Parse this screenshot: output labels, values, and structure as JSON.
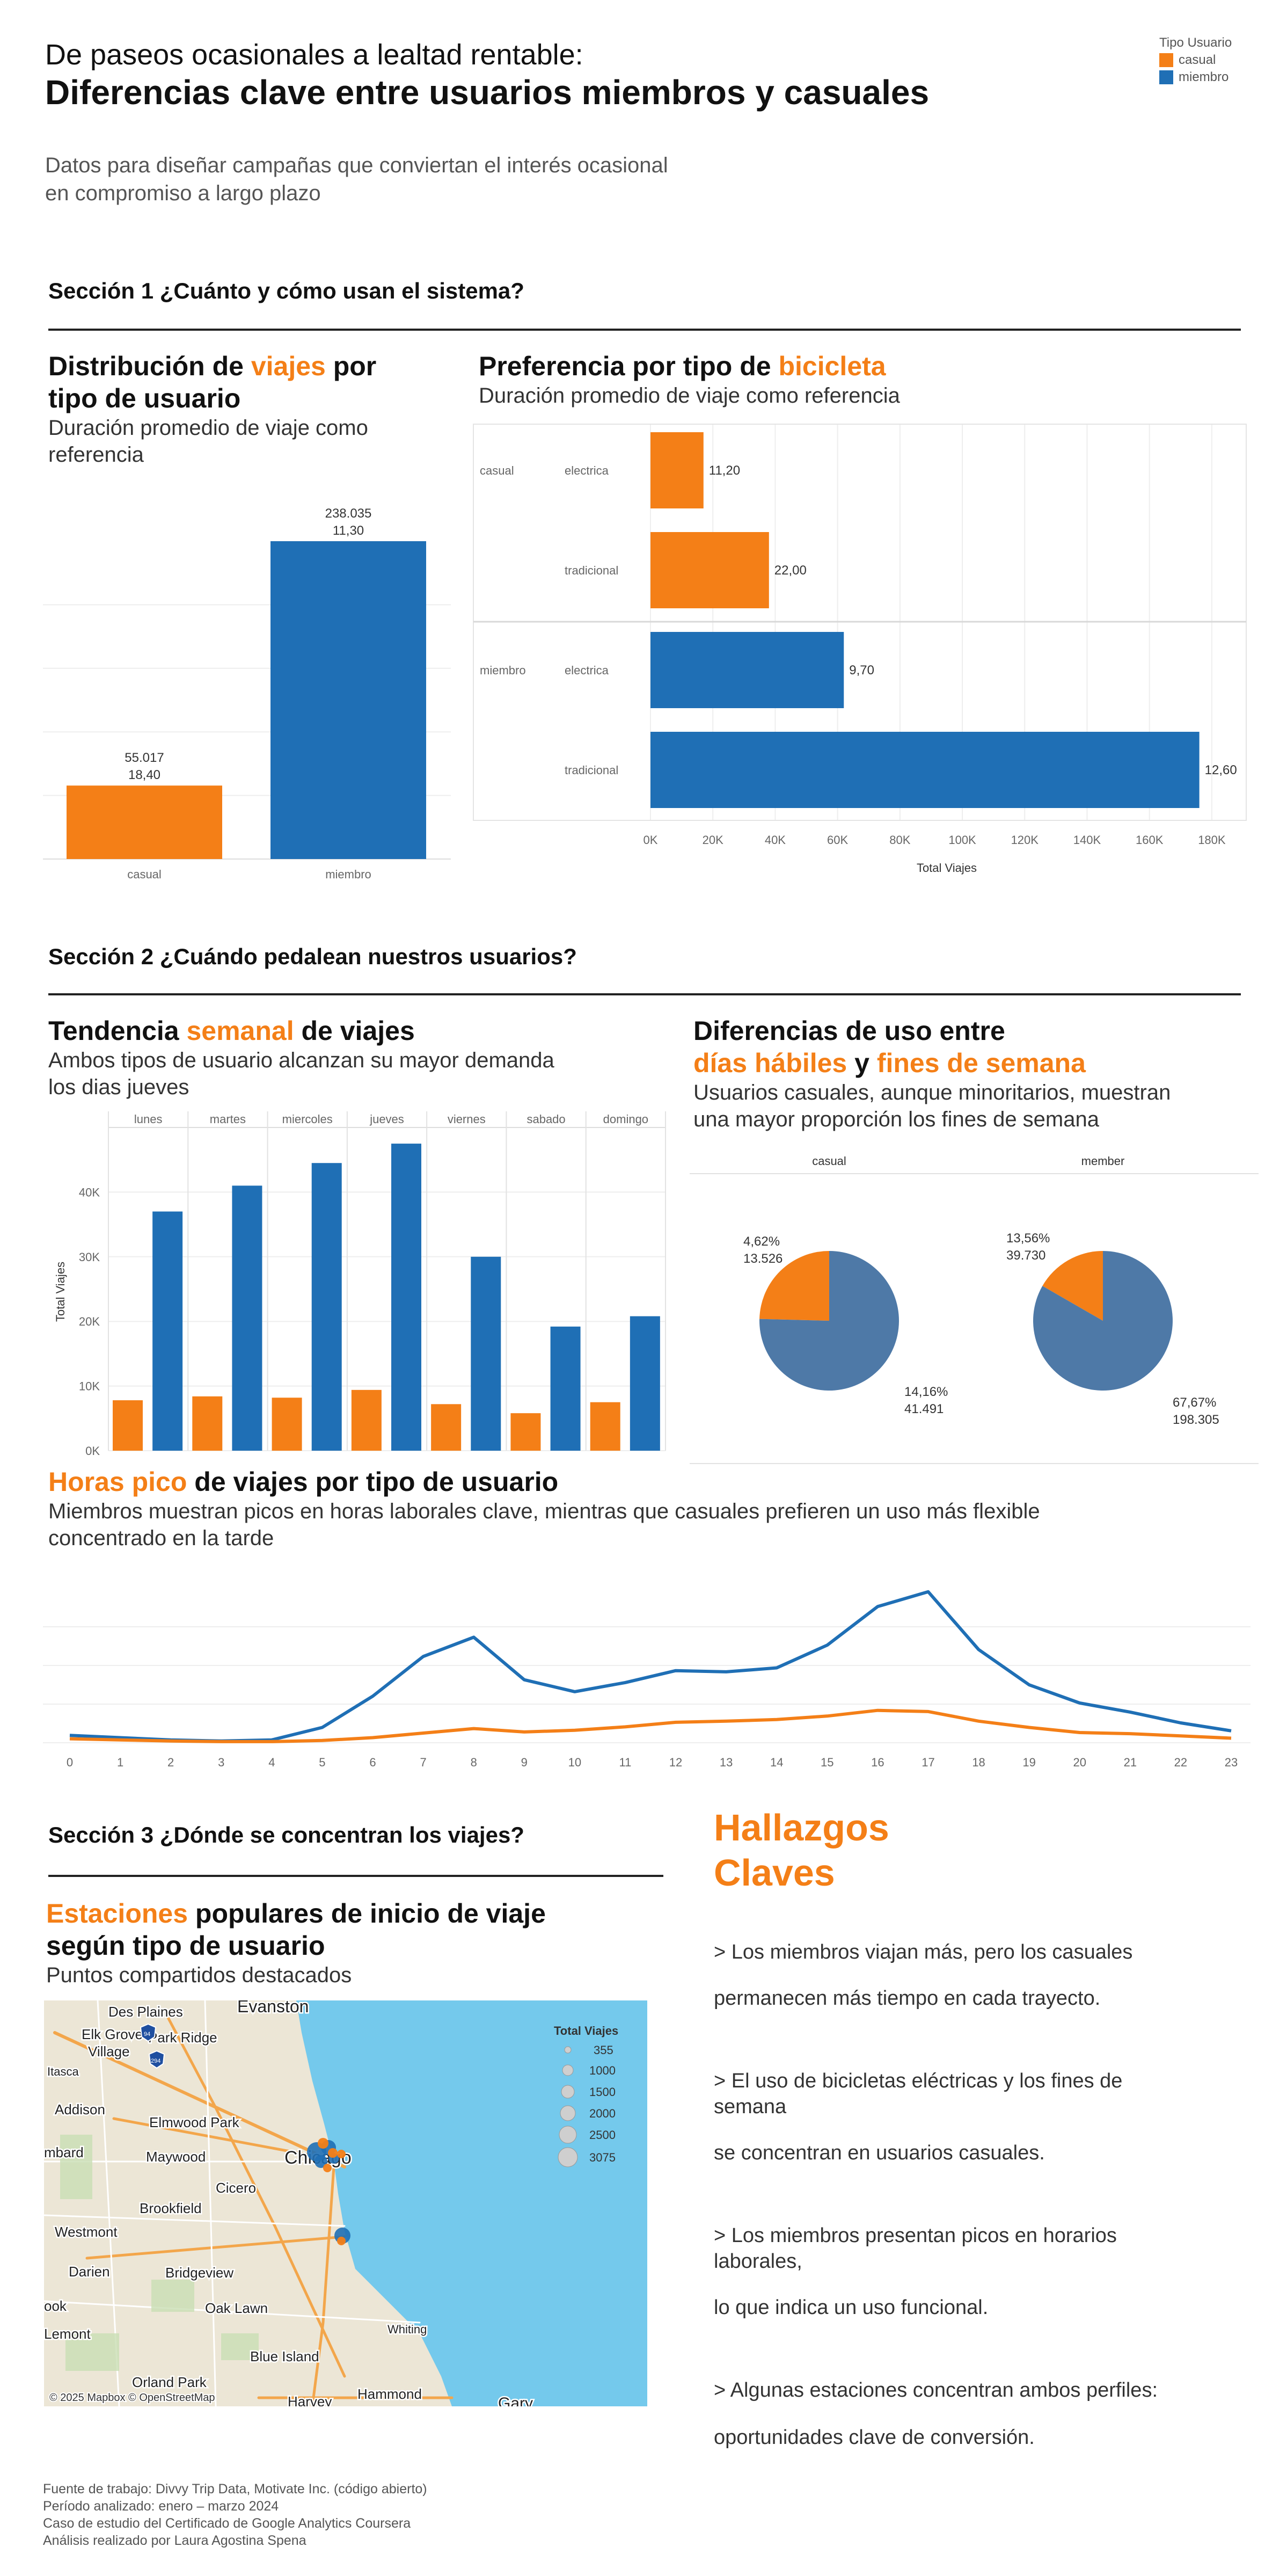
{
  "header": {
    "title_line1": "De paseos ocasionales a lealtad rentable:",
    "title_line2": "Diferencias clave entre usuarios miembros y casuales",
    "subtitle_line1": "Datos para diseñar campañas que conviertan el interés ocasional",
    "subtitle_line2": "en compromiso a largo plazo"
  },
  "legend": {
    "title": "Tipo Usuario",
    "items": [
      {
        "label": "casual",
        "color": "#f47f17"
      },
      {
        "label": "miembro",
        "color": "#1f6fb5"
      }
    ]
  },
  "section1": {
    "title": "Sección 1 ¿Cuánto y cómo usan el sistema?",
    "dist": {
      "title_a": "Distribución de ",
      "title_hl": "viajes",
      "title_b": " por",
      "title_line2": "tipo de usuario",
      "sub_line1": "Duración promedio de viaje como",
      "sub_line2": "referencia"
    },
    "pref": {
      "title_a": "Preferencia por tipo de ",
      "title_hl": "bicicleta",
      "sub": "Duración promedio de viaje como referencia"
    }
  },
  "section2": {
    "title": "Sección 2 ¿Cuándo pedalean nuestros usuarios?",
    "weekly": {
      "title_a": "Tendencia ",
      "title_hl": "semanal",
      "title_b": " de viajes",
      "sub_line1": "Ambos tipos de usuario alcanzan su mayor demanda",
      "sub_line2": "los dias jueves"
    },
    "weekend": {
      "title_line1": "Diferencias de uso entre",
      "title_hl1": "días hábiles",
      "title_mid": " y ",
      "title_hl2": "fines de semana",
      "sub_line1": "Usuarios casuales, aunque minoritarios, muestran",
      "sub_line2": "una mayor proporción los fines de semana"
    },
    "hourly": {
      "title_hl": "Horas pico",
      "title_b": " de viajes por tipo de usuario",
      "sub_line1": "Miembros muestran picos en horas laborales clave, mientras que casuales prefieren un uso más flexible",
      "sub_line2": "concentrado en la tarde"
    }
  },
  "section3": {
    "title": "Sección 3 ¿Dónde se concentran los viajes?",
    "stations": {
      "title_hl": "Estaciones",
      "title_b": " populares de inicio de viaje",
      "title_line2": "según tipo de usuario",
      "sub": "Puntos compartidos destacados"
    },
    "map": {
      "places": [
        "Evanston",
        "Des Plaines",
        "Elk Grove",
        "Village",
        "Park Ridge",
        "Itasca",
        "Addison",
        "Elmwood Park",
        "mbard",
        "Maywood",
        "Cicero",
        "Brookfield",
        "Chicago",
        "Westmont",
        "Darien",
        "Bridgeview",
        "Oak Lawn",
        "Whiting",
        "Blue Island",
        "Orland Park",
        "Lemont",
        "ook",
        "Harvey",
        "Hammond",
        "Gary"
      ],
      "shields": [
        "94",
        "294"
      ],
      "credit": "© 2025 Mapbox © OpenStreetMap",
      "legend_title": "Total Viajes",
      "legend_values": [
        "355",
        "1000",
        "1500",
        "2000",
        "2500",
        "3075"
      ]
    }
  },
  "findings": {
    "title_line1": "Hallazgos",
    "title_line2": "Claves",
    "lines": [
      "> Los miembros viajan más, pero los casuales",
      "permanecen más tiempo en cada trayecto.",
      "> El uso de bicicletas eléctricas y los fines de",
      "semana",
      "se concentran en usuarios casuales.",
      "> Los miembros presentan picos en horarios",
      "laborales,",
      "lo que indica un uso funcional.",
      "> Algunas estaciones concentran ambos perfiles:",
      "oportunidades clave de conversión."
    ]
  },
  "footer": {
    "lines": [
      "Fuente de trabajo: Divvy Trip Data, Motivate Inc. (código abierto)",
      "Período analizado: enero – marzo 2024",
      "Caso de estudio del Certificado de Google Analytics Coursera",
      "Análisis realizado por Laura Agostina Spena"
    ]
  },
  "chart_data": [
    {
      "id": "dist",
      "type": "bar",
      "categories": [
        "casual",
        "miembro"
      ],
      "series": [
        {
          "name": "Total Viajes",
          "values": [
            55017,
            238035
          ]
        },
        {
          "name": "Duración promedio",
          "values": [
            18.4,
            11.3
          ]
        }
      ],
      "labels": [
        [
          "55.017",
          "18,40"
        ],
        [
          "238.035",
          "11,30"
        ]
      ],
      "colors": [
        "#f47f17",
        "#1f6fb5"
      ]
    },
    {
      "id": "pref",
      "type": "bar",
      "orientation": "horizontal",
      "groups": [
        "casual",
        "casual",
        "miembro",
        "miembro"
      ],
      "categories": [
        "electrica",
        "tradicional",
        "electrica",
        "tradicional"
      ],
      "values": [
        17000,
        38000,
        62000,
        176000
      ],
      "labels": [
        "11,20",
        "22,00",
        "9,70",
        "12,60"
      ],
      "colors": [
        "#f47f17",
        "#f47f17",
        "#1f6fb5",
        "#1f6fb5"
      ],
      "xlabel": "Total Viajes",
      "xlim": [
        0,
        190000
      ],
      "xticks": [
        "0K",
        "20K",
        "40K",
        "60K",
        "80K",
        "100K",
        "120K",
        "140K",
        "160K",
        "180K"
      ]
    },
    {
      "id": "weekly",
      "type": "bar",
      "categories": [
        "lunes",
        "martes",
        "miercoles",
        "jueves",
        "viernes",
        "sabado",
        "domingo"
      ],
      "series": [
        {
          "name": "casual",
          "values": [
            7800,
            8400,
            8200,
            9400,
            7200,
            5800,
            7500
          ]
        },
        {
          "name": "miembro",
          "values": [
            37000,
            41000,
            44500,
            47500,
            30000,
            19200,
            20800
          ]
        }
      ],
      "ylabel": "Total Viajes",
      "ylim": [
        0,
        50000
      ],
      "yticks": [
        "0K",
        "10K",
        "20K",
        "30K",
        "40K"
      ]
    },
    {
      "id": "weekend",
      "type": "pie",
      "panels": [
        {
          "name": "casual",
          "labels": [
            [
              "4,62%",
              "13.526"
            ],
            [
              "14,16%",
              "41.491"
            ]
          ],
          "values": [
            13526,
            41491
          ]
        },
        {
          "name": "member",
          "labels": [
            [
              "13,56%",
              "39.730"
            ],
            [
              "67,67%",
              "198.305"
            ]
          ],
          "values": [
            39730,
            198305
          ]
        }
      ],
      "colors": [
        "#f47f17",
        "#4e79a7"
      ]
    },
    {
      "id": "hourly",
      "type": "line",
      "x": [
        0,
        1,
        2,
        3,
        4,
        5,
        6,
        7,
        8,
        9,
        10,
        11,
        12,
        13,
        14,
        15,
        16,
        17,
        18,
        19,
        20,
        21,
        22,
        23
      ],
      "series": [
        {
          "name": "miembro",
          "values": [
            1300,
            900,
            500,
            300,
            500,
            2700,
            8200,
            15200,
            18600,
            11100,
            9000,
            10600,
            12700,
            12500,
            13200,
            17200,
            24000,
            26600,
            16400,
            10200,
            7000,
            5400,
            3500,
            2100
          ]
        },
        {
          "name": "casual",
          "values": [
            700,
            500,
            300,
            200,
            200,
            400,
            900,
            1700,
            2500,
            1900,
            2200,
            2800,
            3600,
            3800,
            4100,
            4700,
            5700,
            5500,
            3800,
            2700,
            1800,
            1600,
            1200,
            800
          ]
        }
      ],
      "colors": [
        "#1f6fb5",
        "#f47f17"
      ],
      "ylim": [
        0,
        28000
      ]
    }
  ]
}
